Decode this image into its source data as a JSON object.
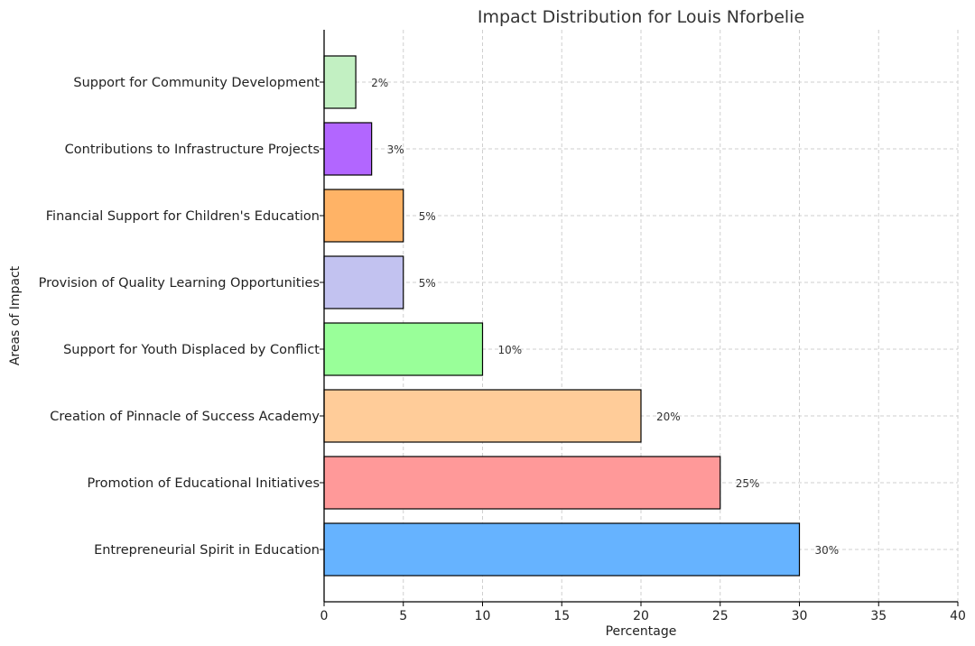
{
  "chart_data": {
    "type": "bar",
    "orientation": "horizontal",
    "title": "Impact Distribution for Louis Nforbelie",
    "xlabel": "Percentage",
    "ylabel": "Areas of Impact",
    "xlim": [
      0,
      40
    ],
    "xticks": [
      0,
      5,
      10,
      15,
      20,
      25,
      30,
      35,
      40
    ],
    "grid": true,
    "categories": [
      "Entrepreneurial Spirit in Education",
      "Promotion of Educational Initiatives",
      "Creation of Pinnacle of Success Academy",
      "Support for Youth Displaced by Conflict",
      "Provision of Quality Learning Opportunities",
      "Financial Support for Children's Education",
      "Contributions to Infrastructure Projects",
      "Support for Community Development"
    ],
    "values": [
      30,
      25,
      20,
      10,
      5,
      5,
      3,
      2
    ],
    "value_labels": [
      "30%",
      "25%",
      "20%",
      "10%",
      "5%",
      "5%",
      "3%",
      "2%"
    ],
    "colors": [
      "#66b3ff",
      "#ff9999",
      "#ffcc99",
      "#99ff99",
      "#c2c2f0",
      "#ffb366",
      "#b266ff",
      "#c2f0c2"
    ]
  }
}
